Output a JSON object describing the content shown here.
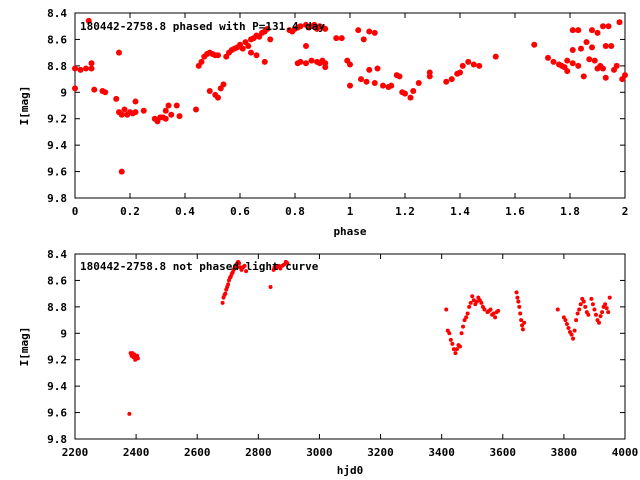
{
  "chart_data": [
    {
      "type": "scatter",
      "title": "180442-2758.8 phased with P=131.4 day",
      "xlabel": "phase",
      "ylabel": "I[mag]",
      "xlim": [
        0,
        2
      ],
      "ylim": [
        8.4,
        9.8
      ],
      "y_inverted": true,
      "xticks": [
        "0",
        "0.2",
        "0.4",
        "0.6",
        "0.8",
        "1",
        "1.2",
        "1.4",
        "1.6",
        "1.8",
        "2"
      ],
      "yticks": [
        "8.4",
        "8.6",
        "8.8",
        "9",
        "9.2",
        "9.4",
        "9.6",
        "9.8"
      ],
      "grid": false,
      "marker_color": "#ff0000",
      "points": [
        [
          0.0,
          8.97
        ],
        [
          0.0,
          8.82
        ],
        [
          0.02,
          8.83
        ],
        [
          0.04,
          8.82
        ],
        [
          0.05,
          8.46
        ],
        [
          0.06,
          8.78
        ],
        [
          0.06,
          8.82
        ],
        [
          0.07,
          8.98
        ],
        [
          0.1,
          8.99
        ],
        [
          0.11,
          9.0
        ],
        [
          0.15,
          9.05
        ],
        [
          0.16,
          8.7
        ],
        [
          0.17,
          9.6
        ],
        [
          0.16,
          9.15
        ],
        [
          0.17,
          9.17
        ],
        [
          0.18,
          9.13
        ],
        [
          0.19,
          9.17
        ],
        [
          0.2,
          9.15
        ],
        [
          0.21,
          9.16
        ],
        [
          0.22,
          9.15
        ],
        [
          0.22,
          9.07
        ],
        [
          0.25,
          9.14
        ],
        [
          0.29,
          9.2
        ],
        [
          0.3,
          9.22
        ],
        [
          0.31,
          9.19
        ],
        [
          0.32,
          9.19
        ],
        [
          0.33,
          9.2
        ],
        [
          0.33,
          9.14
        ],
        [
          0.34,
          9.1
        ],
        [
          0.35,
          9.17
        ],
        [
          0.37,
          9.1
        ],
        [
          0.38,
          9.18
        ],
        [
          0.44,
          9.13
        ],
        [
          0.45,
          8.8
        ],
        [
          0.46,
          8.77
        ],
        [
          0.47,
          8.73
        ],
        [
          0.48,
          8.71
        ],
        [
          0.49,
          8.7
        ],
        [
          0.5,
          8.71
        ],
        [
          0.51,
          8.72
        ],
        [
          0.52,
          8.72
        ],
        [
          0.49,
          8.99
        ],
        [
          0.51,
          9.02
        ],
        [
          0.52,
          9.04
        ],
        [
          0.53,
          8.97
        ],
        [
          0.54,
          8.94
        ],
        [
          0.55,
          8.73
        ],
        [
          0.56,
          8.7
        ],
        [
          0.57,
          8.68
        ],
        [
          0.58,
          8.67
        ],
        [
          0.59,
          8.66
        ],
        [
          0.6,
          8.64
        ],
        [
          0.61,
          8.67
        ],
        [
          0.62,
          8.62
        ],
        [
          0.63,
          8.65
        ],
        [
          0.64,
          8.6
        ],
        [
          0.65,
          8.59
        ],
        [
          0.66,
          8.57
        ],
        [
          0.67,
          8.58
        ],
        [
          0.68,
          8.55
        ],
        [
          0.69,
          8.54
        ],
        [
          0.7,
          8.52
        ],
        [
          0.64,
          8.7
        ],
        [
          0.66,
          8.72
        ],
        [
          0.69,
          8.77
        ],
        [
          0.71,
          8.6
        ],
        [
          0.78,
          8.53
        ],
        [
          0.79,
          8.54
        ],
        [
          0.8,
          8.52
        ],
        [
          0.81,
          8.51
        ],
        [
          0.82,
          8.5
        ],
        [
          0.84,
          8.49
        ],
        [
          0.85,
          8.51
        ],
        [
          0.86,
          8.5
        ],
        [
          0.87,
          8.49
        ],
        [
          0.88,
          8.52
        ],
        [
          0.89,
          8.5
        ],
        [
          0.9,
          8.51
        ],
        [
          0.91,
          8.52
        ],
        [
          0.84,
          8.65
        ],
        [
          0.81,
          8.78
        ],
        [
          0.82,
          8.77
        ],
        [
          0.84,
          8.78
        ],
        [
          0.86,
          8.76
        ],
        [
          0.88,
          8.77
        ],
        [
          0.89,
          8.78
        ],
        [
          0.9,
          8.76
        ],
        [
          0.91,
          8.78
        ],
        [
          0.91,
          8.81
        ],
        [
          0.95,
          8.59
        ],
        [
          0.97,
          8.59
        ],
        [
          0.99,
          8.76
        ],
        [
          1.0,
          8.79
        ],
        [
          1.0,
          8.95
        ],
        [
          1.03,
          8.53
        ],
        [
          1.05,
          8.6
        ],
        [
          1.07,
          8.54
        ],
        [
          1.09,
          8.55
        ],
        [
          1.04,
          8.9
        ],
        [
          1.06,
          8.92
        ],
        [
          1.07,
          8.83
        ],
        [
          1.09,
          8.93
        ],
        [
          1.1,
          8.82
        ],
        [
          1.12,
          8.95
        ],
        [
          1.14,
          8.96
        ],
        [
          1.15,
          8.95
        ],
        [
          1.17,
          8.87
        ],
        [
          1.18,
          8.88
        ],
        [
          1.19,
          9.0
        ],
        [
          1.2,
          9.01
        ],
        [
          1.22,
          9.04
        ],
        [
          1.23,
          8.99
        ],
        [
          1.25,
          8.93
        ],
        [
          1.29,
          8.88
        ],
        [
          1.29,
          8.85
        ],
        [
          1.35,
          8.92
        ],
        [
          1.37,
          8.9
        ],
        [
          1.39,
          8.86
        ],
        [
          1.4,
          8.85
        ],
        [
          1.41,
          8.8
        ],
        [
          1.43,
          8.77
        ],
        [
          1.45,
          8.79
        ],
        [
          1.47,
          8.8
        ],
        [
          1.53,
          8.73
        ],
        [
          1.67,
          8.64
        ],
        [
          1.72,
          8.74
        ],
        [
          1.74,
          8.77
        ],
        [
          1.76,
          8.79
        ],
        [
          1.77,
          8.8
        ],
        [
          1.78,
          8.81
        ],
        [
          1.79,
          8.76
        ],
        [
          1.79,
          8.84
        ],
        [
          1.81,
          8.78
        ],
        [
          1.81,
          8.68
        ],
        [
          1.81,
          8.53
        ],
        [
          1.83,
          8.53
        ],
        [
          1.83,
          8.8
        ],
        [
          1.84,
          8.67
        ],
        [
          1.85,
          8.88
        ],
        [
          1.86,
          8.62
        ],
        [
          1.87,
          8.75
        ],
        [
          1.88,
          8.53
        ],
        [
          1.88,
          8.66
        ],
        [
          1.89,
          8.76
        ],
        [
          1.9,
          8.82
        ],
        [
          1.9,
          8.55
        ],
        [
          1.91,
          8.8
        ],
        [
          1.92,
          8.5
        ],
        [
          1.92,
          8.82
        ],
        [
          1.93,
          8.65
        ],
        [
          1.93,
          8.89
        ],
        [
          1.94,
          8.5
        ],
        [
          1.95,
          8.65
        ],
        [
          1.96,
          8.83
        ],
        [
          1.97,
          8.8
        ],
        [
          1.98,
          8.47
        ],
        [
          1.99,
          8.9
        ],
        [
          2.0,
          8.87
        ]
      ]
    },
    {
      "type": "scatter",
      "title": "180442-2758.8 not phased light curve",
      "xlabel": "hjd0",
      "ylabel": "I[mag]",
      "xlim": [
        2200,
        4000
      ],
      "ylim": [
        8.4,
        9.8
      ],
      "y_inverted": true,
      "xticks": [
        "2200",
        "2400",
        "2600",
        "2800",
        "3000",
        "3200",
        "3400",
        "3600",
        "3800",
        "4000"
      ],
      "yticks": [
        "8.4",
        "8.6",
        "8.8",
        "9",
        "9.2",
        "9.4",
        "9.6",
        "9.8"
      ],
      "grid": false,
      "marker_color": "#ff0000",
      "points": [
        [
          2378,
          9.61
        ],
        [
          2382,
          9.15
        ],
        [
          2385,
          9.17
        ],
        [
          2388,
          9.15
        ],
        [
          2391,
          9.18
        ],
        [
          2394,
          9.16
        ],
        [
          2397,
          9.2
        ],
        [
          2400,
          9.18
        ],
        [
          2403,
          9.17
        ],
        [
          2406,
          9.19
        ],
        [
          2683,
          8.77
        ],
        [
          2686,
          8.73
        ],
        [
          2689,
          8.71
        ],
        [
          2692,
          8.7
        ],
        [
          2695,
          8.67
        ],
        [
          2698,
          8.65
        ],
        [
          2701,
          8.63
        ],
        [
          2704,
          8.6
        ],
        [
          2707,
          8.58
        ],
        [
          2710,
          8.57
        ],
        [
          2713,
          8.55
        ],
        [
          2716,
          8.54
        ],
        [
          2719,
          8.52
        ],
        [
          2722,
          8.51
        ],
        [
          2725,
          8.5
        ],
        [
          2728,
          8.48
        ],
        [
          2731,
          8.47
        ],
        [
          2734,
          8.46
        ],
        [
          2737,
          8.47
        ],
        [
          2740,
          8.5
        ],
        [
          2745,
          8.52
        ],
        [
          2750,
          8.5
        ],
        [
          2755,
          8.49
        ],
        [
          2760,
          8.53
        ],
        [
          2840,
          8.65
        ],
        [
          2850,
          8.52
        ],
        [
          2853,
          8.5
        ],
        [
          2860,
          8.5
        ],
        [
          2866,
          8.49
        ],
        [
          2872,
          8.51
        ],
        [
          2878,
          8.49
        ],
        [
          2884,
          8.48
        ],
        [
          2890,
          8.46
        ],
        [
          2895,
          8.47
        ],
        [
          3415,
          8.82
        ],
        [
          3420,
          8.98
        ],
        [
          3425,
          9.0
        ],
        [
          3430,
          9.05
        ],
        [
          3435,
          9.08
        ],
        [
          3440,
          9.12
        ],
        [
          3445,
          9.15
        ],
        [
          3450,
          9.12
        ],
        [
          3455,
          9.09
        ],
        [
          3460,
          9.1
        ],
        [
          3465,
          9.0
        ],
        [
          3470,
          8.95
        ],
        [
          3475,
          8.9
        ],
        [
          3480,
          8.88
        ],
        [
          3485,
          8.85
        ],
        [
          3490,
          8.8
        ],
        [
          3495,
          8.77
        ],
        [
          3500,
          8.72
        ],
        [
          3505,
          8.75
        ],
        [
          3510,
          8.78
        ],
        [
          3515,
          8.76
        ],
        [
          3520,
          8.73
        ],
        [
          3525,
          8.75
        ],
        [
          3530,
          8.77
        ],
        [
          3535,
          8.8
        ],
        [
          3540,
          8.82
        ],
        [
          3550,
          8.84
        ],
        [
          3555,
          8.83
        ],
        [
          3560,
          8.82
        ],
        [
          3565,
          8.86
        ],
        [
          3570,
          8.85
        ],
        [
          3575,
          8.88
        ],
        [
          3580,
          8.84
        ],
        [
          3585,
          8.83
        ],
        [
          3645,
          8.69
        ],
        [
          3648,
          8.73
        ],
        [
          3651,
          8.76
        ],
        [
          3654,
          8.8
        ],
        [
          3657,
          8.85
        ],
        [
          3660,
          8.9
        ],
        [
          3663,
          8.94
        ],
        [
          3666,
          8.97
        ],
        [
          3670,
          8.92
        ],
        [
          3780,
          8.82
        ],
        [
          3800,
          8.88
        ],
        [
          3805,
          8.9
        ],
        [
          3810,
          8.93
        ],
        [
          3815,
          8.96
        ],
        [
          3820,
          8.99
        ],
        [
          3825,
          9.01
        ],
        [
          3830,
          9.04
        ],
        [
          3835,
          8.98
        ],
        [
          3840,
          8.9
        ],
        [
          3845,
          8.85
        ],
        [
          3850,
          8.82
        ],
        [
          3855,
          8.78
        ],
        [
          3860,
          8.74
        ],
        [
          3865,
          8.76
        ],
        [
          3870,
          8.8
        ],
        [
          3875,
          8.84
        ],
        [
          3880,
          8.86
        ],
        [
          3890,
          8.74
        ],
        [
          3895,
          8.78
        ],
        [
          3900,
          8.82
        ],
        [
          3905,
          8.86
        ],
        [
          3910,
          8.9
        ],
        [
          3915,
          8.92
        ],
        [
          3920,
          8.87
        ],
        [
          3925,
          8.84
        ],
        [
          3930,
          8.8
        ],
        [
          3935,
          8.78
        ],
        [
          3940,
          8.81
        ],
        [
          3945,
          8.84
        ],
        [
          3950,
          8.73
        ]
      ]
    }
  ]
}
